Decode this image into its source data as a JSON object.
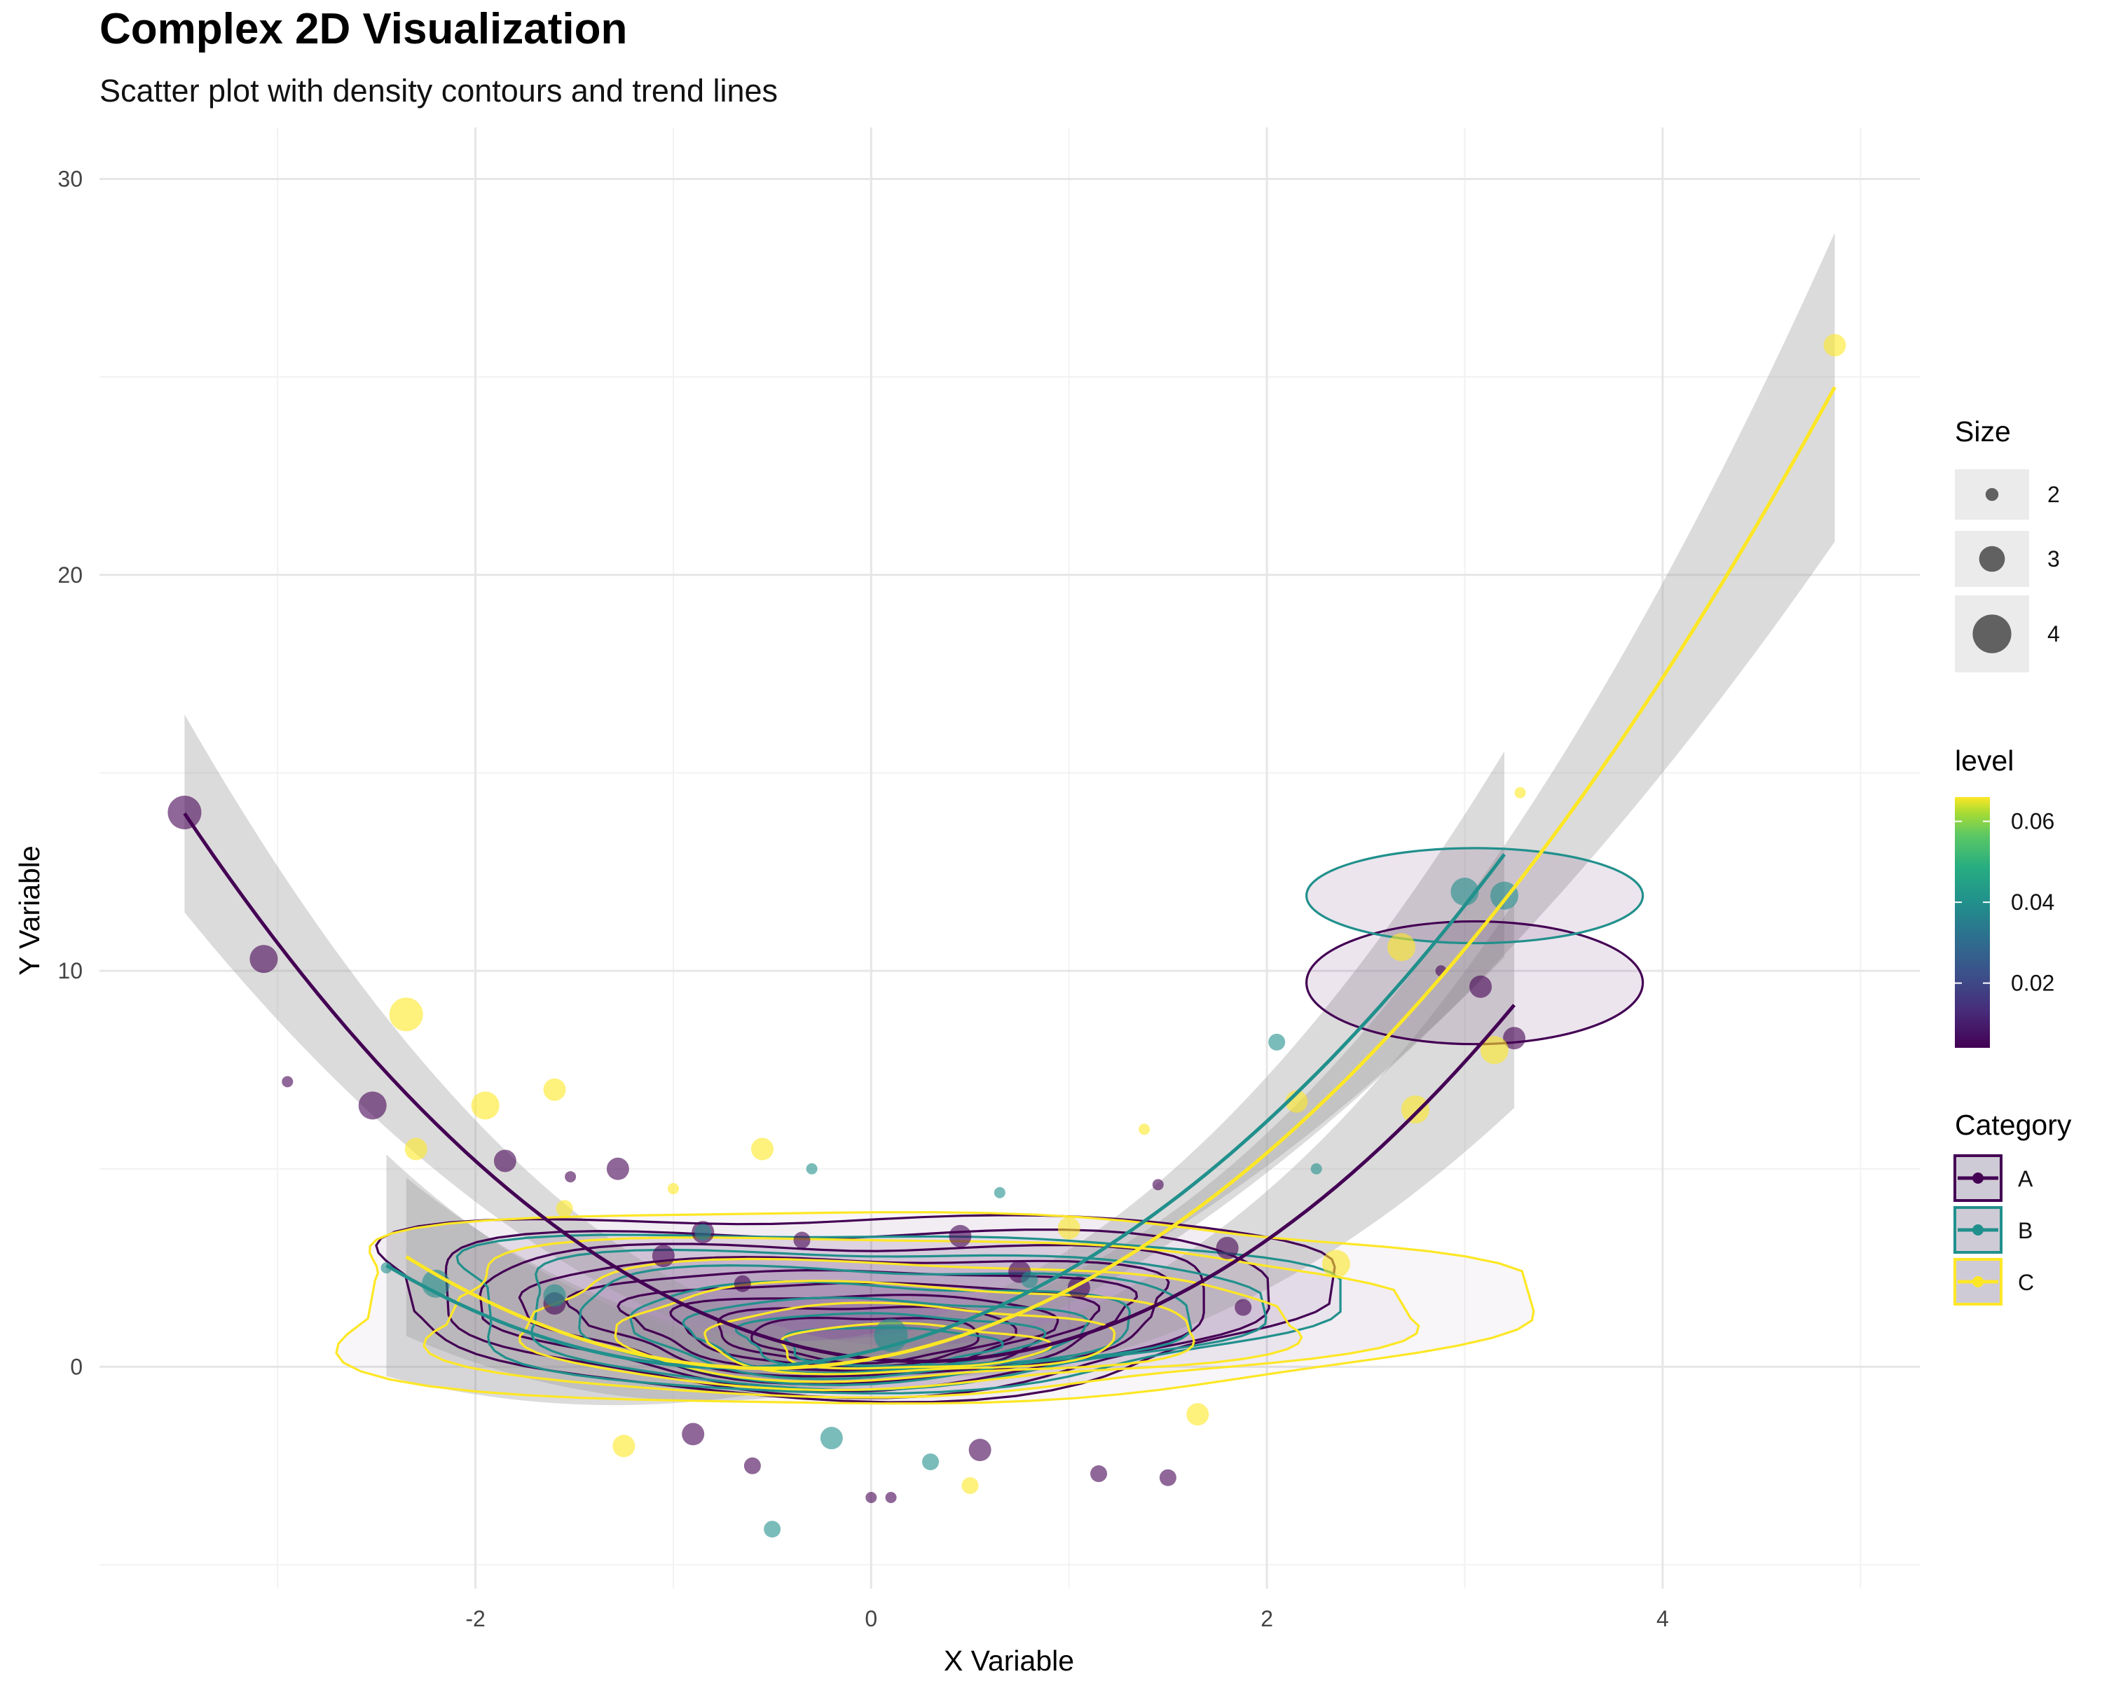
{
  "title": "Complex 2D Visualization",
  "subtitle": "Scatter plot with density contours and trend lines",
  "chart_data": {
    "type": "scatter",
    "title": "Complex 2D Visualization",
    "subtitle": "Scatter plot with density contours and trend lines",
    "xlabel": "X Variable",
    "ylabel": "Y Variable",
    "xlim": [
      -3.9,
      5.3
    ],
    "ylim": [
      -5.6,
      31.3
    ],
    "x_ticks": [
      -2,
      0,
      2,
      4
    ],
    "y_ticks": [
      0,
      10,
      20,
      30
    ],
    "grid": true,
    "colors": {
      "A": "#440154",
      "B": "#21908C",
      "C": "#FDE725"
    },
    "legend": {
      "size": {
        "title": "Size",
        "entries": [
          {
            "label": "2",
            "value": 2
          },
          {
            "label": "3",
            "value": 3
          },
          {
            "label": "4",
            "value": 4
          }
        ]
      },
      "level": {
        "title": "level",
        "ticks": [
          {
            "label": "0.02",
            "value": 0.02
          },
          {
            "label": "0.04",
            "value": 0.04
          },
          {
            "label": "0.06",
            "value": 0.06
          }
        ],
        "range": [
          0.004,
          0.066
        ]
      },
      "category": {
        "title": "Category",
        "entries": [
          "A",
          "B",
          "C"
        ]
      }
    },
    "series": [
      {
        "name": "A",
        "color": "#440154",
        "points": [
          {
            "x": -3.47,
            "y": 14.0,
            "size": 4
          },
          {
            "x": -3.07,
            "y": 10.3,
            "size": 3.5
          },
          {
            "x": -2.95,
            "y": 7.2,
            "size": 2
          },
          {
            "x": -2.52,
            "y": 6.6,
            "size": 3.5
          },
          {
            "x": -1.85,
            "y": 5.2,
            "size": 3
          },
          {
            "x": -1.52,
            "y": 4.8,
            "size": 2
          },
          {
            "x": -1.28,
            "y": 5.0,
            "size": 3
          },
          {
            "x": -1.6,
            "y": 1.6,
            "size": 3
          },
          {
            "x": -1.05,
            "y": 2.8,
            "size": 3
          },
          {
            "x": -0.85,
            "y": 3.4,
            "size": 3
          },
          {
            "x": -0.65,
            "y": 2.1,
            "size": 2.5
          },
          {
            "x": -0.35,
            "y": 3.2,
            "size": 2.5
          },
          {
            "x": 0.45,
            "y": 3.3,
            "size": 3
          },
          {
            "x": 0.75,
            "y": 2.4,
            "size": 3
          },
          {
            "x": 1.05,
            "y": 2.0,
            "size": 3
          },
          {
            "x": 1.45,
            "y": 4.6,
            "size": 2
          },
          {
            "x": 1.8,
            "y": 3.0,
            "size": 3
          },
          {
            "x": 1.88,
            "y": 1.5,
            "size": 2.5
          },
          {
            "x": -0.9,
            "y": -1.7,
            "size": 3
          },
          {
            "x": -0.6,
            "y": -2.5,
            "size": 2.5
          },
          {
            "x": 0.0,
            "y": -3.3,
            "size": 2
          },
          {
            "x": 0.1,
            "y": -3.3,
            "size": 2
          },
          {
            "x": 0.55,
            "y": -2.1,
            "size": 3
          },
          {
            "x": 1.15,
            "y": -2.7,
            "size": 2.5
          },
          {
            "x": 1.5,
            "y": -2.8,
            "size": 2.5
          },
          {
            "x": 2.88,
            "y": 10.0,
            "size": 2
          },
          {
            "x": 3.08,
            "y": 9.6,
            "size": 3
          },
          {
            "x": 3.25,
            "y": 8.3,
            "size": 3
          }
        ]
      },
      {
        "name": "B",
        "color": "#21908C",
        "points": [
          {
            "x": -2.45,
            "y": 2.5,
            "size": 2
          },
          {
            "x": -2.2,
            "y": 2.1,
            "size": 3.5
          },
          {
            "x": -1.6,
            "y": 1.8,
            "size": 3
          },
          {
            "x": -0.85,
            "y": 3.4,
            "size": 2.5
          },
          {
            "x": -0.3,
            "y": 5.0,
            "size": 2
          },
          {
            "x": 0.1,
            "y": 0.8,
            "size": 4
          },
          {
            "x": 0.65,
            "y": 4.4,
            "size": 2
          },
          {
            "x": 0.8,
            "y": 2.2,
            "size": 2.5
          },
          {
            "x": 2.05,
            "y": 8.2,
            "size": 2.5
          },
          {
            "x": 2.25,
            "y": 5.0,
            "size": 2
          },
          {
            "x": 3.0,
            "y": 12.0,
            "size": 3.5
          },
          {
            "x": 3.2,
            "y": 11.9,
            "size": 3.5
          },
          {
            "x": -0.5,
            "y": -4.1,
            "size": 2.5
          },
          {
            "x": -0.2,
            "y": -1.8,
            "size": 3
          },
          {
            "x": 0.3,
            "y": -2.4,
            "size": 2.5
          }
        ]
      },
      {
        "name": "C",
        "color": "#FDE725",
        "points": [
          {
            "x": -2.35,
            "y": 8.9,
            "size": 4
          },
          {
            "x": -2.3,
            "y": 5.5,
            "size": 3
          },
          {
            "x": -1.95,
            "y": 6.6,
            "size": 3.5
          },
          {
            "x": -1.6,
            "y": 7.0,
            "size": 3
          },
          {
            "x": -1.55,
            "y": 4.0,
            "size": 2.5
          },
          {
            "x": -1.0,
            "y": 4.5,
            "size": 2
          },
          {
            "x": -0.55,
            "y": 5.5,
            "size": 3
          },
          {
            "x": 1.0,
            "y": 3.5,
            "size": 3
          },
          {
            "x": 1.38,
            "y": 6.0,
            "size": 2
          },
          {
            "x": 2.15,
            "y": 6.7,
            "size": 3
          },
          {
            "x": 2.35,
            "y": 2.6,
            "size": 3.5
          },
          {
            "x": 2.68,
            "y": 10.6,
            "size": 3.5
          },
          {
            "x": 2.75,
            "y": 6.5,
            "size": 3.5
          },
          {
            "x": 3.15,
            "y": 8.0,
            "size": 3.5
          },
          {
            "x": 3.28,
            "y": 14.5,
            "size": 2
          },
          {
            "x": 4.87,
            "y": 25.8,
            "size": 3
          },
          {
            "x": -1.25,
            "y": -2.0,
            "size": 3
          },
          {
            "x": 0.5,
            "y": -3.0,
            "size": 2.5
          },
          {
            "x": 1.65,
            "y": -1.2,
            "size": 3
          }
        ]
      }
    ],
    "trend_lines": [
      {
        "name": "A",
        "x_range": [
          -3.47,
          3.25
        ],
        "coef": [
          0.2,
          -0.5,
          1.0
        ],
        "se": [
          2.5,
          0.35,
          2.6
        ]
      },
      {
        "name": "B",
        "x_range": [
          -2.45,
          3.2
        ],
        "coef": [
          0.4,
          1.2,
          0.85
        ],
        "se": [
          2.8,
          0.4,
          2.6
        ]
      },
      {
        "name": "C",
        "x_range": [
          -2.35,
          4.87
        ],
        "coef": [
          0.2,
          0.9,
          0.85
        ],
        "se": [
          2.0,
          0.35,
          3.9
        ]
      }
    ],
    "density_contours": [
      {
        "name": "A",
        "color": "#440154",
        "center": [
          0.0,
          0.5
        ],
        "spread": [
          1.3,
          2.3
        ],
        "levels": [
          0.006,
          0.012,
          0.018,
          0.024,
          0.03,
          0.036,
          0.042,
          0.048,
          0.054
        ]
      },
      {
        "name": "B",
        "color": "#21908C",
        "center": [
          0.1,
          0.3
        ],
        "spread": [
          1.2,
          2.0
        ],
        "levels": [
          0.006,
          0.014,
          0.022,
          0.03,
          0.038,
          0.046,
          0.054
        ]
      },
      {
        "name": "C",
        "color": "#FDE725",
        "center": [
          0.2,
          0.3
        ],
        "spread": [
          1.6,
          2.4
        ],
        "levels": [
          0.005,
          0.015,
          0.025,
          0.035,
          0.045,
          0.055
        ]
      }
    ],
    "outlier_ellipses": [
      {
        "name": "A",
        "color": "#440154",
        "center": [
          3.05,
          9.7
        ],
        "radius": [
          0.85,
          1.55
        ]
      },
      {
        "name": "B",
        "color": "#21908C",
        "center": [
          3.05,
          11.9
        ],
        "radius": [
          0.85,
          1.2
        ]
      }
    ]
  }
}
